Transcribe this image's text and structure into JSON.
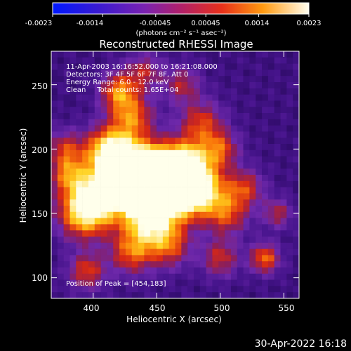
{
  "colorbar": {
    "ticks": [
      "-0.0023",
      "-0.0014",
      "-0.00045",
      "0.00045",
      "0.0014",
      "0.0023"
    ],
    "unit_label": "(photons cm⁻² s⁻¹ asec⁻²)",
    "range": [
      -0.0023,
      0.0023
    ]
  },
  "plot": {
    "title": "Reconstructed RHESSI Image",
    "xlabel": "Heliocentric X (arcsec)",
    "ylabel": "Heliocentric Y (arcsec)",
    "x_ticks": [
      "400",
      "450",
      "500",
      "550"
    ],
    "y_ticks": [
      "100",
      "150",
      "200",
      "250"
    ],
    "xlim": [
      367,
      562
    ],
    "ylim": [
      84,
      276
    ],
    "info_lines": [
      "11-Apr-2003 16:16:52.000 to 16:21:08.000",
      "Detectors: 3F 4F 5F 6F 7F 8F, Att 0",
      "Energy Range: 6.0 - 12.0 keV",
      "Clean     Total counts: 1.65E+04"
    ],
    "peak_label": "Position of Peak = [454,183]",
    "peak": [
      454,
      183
    ]
  },
  "footer": {
    "timestamp": "30-Apr-2022 16:18"
  }
}
